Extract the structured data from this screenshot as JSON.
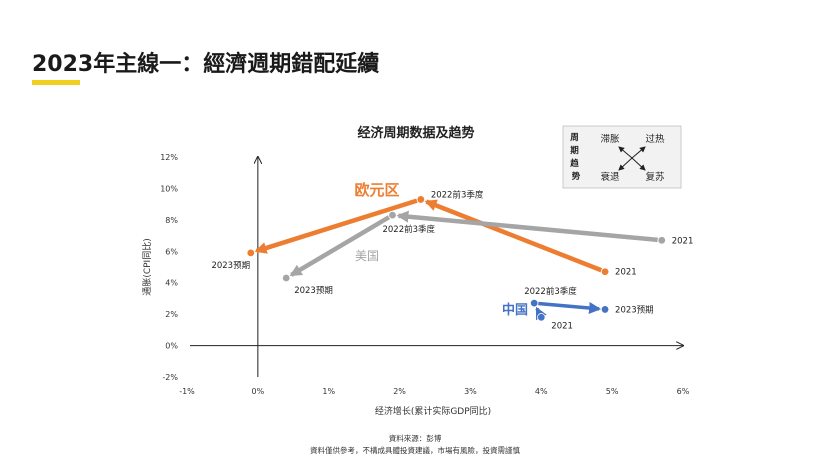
{
  "slide": {
    "title": "2023年主線一：經濟週期錯配延續",
    "accent_color": "#f2cf1e"
  },
  "chart_data": {
    "type": "scatter",
    "title": "经济周期数据及趋势",
    "xlabel": "经济增长(累计实际GDP同比)",
    "ylabel": "通胀(CPI同比)",
    "xlim": [
      -0.01,
      0.06
    ],
    "ylim": [
      -0.02,
      0.12
    ],
    "x_ticks": [
      "-1%",
      "0%",
      "1%",
      "2%",
      "3%",
      "4%",
      "5%",
      "6%"
    ],
    "y_ticks": [
      "-2%",
      "0%",
      "2%",
      "4%",
      "6%",
      "8%",
      "10%",
      "12%"
    ],
    "grid": false,
    "series": [
      {
        "name": "欧元区",
        "color": "#ed7d31",
        "points": [
          {
            "label": "2021",
            "x": 0.049,
            "y": 0.047
          },
          {
            "label": "2022前3季度",
            "x": 0.023,
            "y": 0.093
          },
          {
            "label": "2023预期",
            "x": -0.001,
            "y": 0.059
          }
        ]
      },
      {
        "name": "美国",
        "color": "#a5a5a5",
        "points": [
          {
            "label": "2021",
            "x": 0.057,
            "y": 0.067
          },
          {
            "label": "2022前3季度",
            "x": 0.019,
            "y": 0.083
          },
          {
            "label": "2023预期",
            "x": 0.004,
            "y": 0.043
          }
        ]
      },
      {
        "name": "中国",
        "color": "#4472c4",
        "points": [
          {
            "label": "2021",
            "x": 0.04,
            "y": 0.018
          },
          {
            "label": "2022前3季度",
            "x": 0.039,
            "y": 0.027
          },
          {
            "label": "2023预期",
            "x": 0.049,
            "y": 0.023
          }
        ]
      }
    ],
    "legend_box": {
      "side_label": "周期趋势",
      "quadrants": [
        "滞胀",
        "过热",
        "衰退",
        "复苏"
      ]
    }
  },
  "footer": {
    "source": "資料來源：彭博",
    "disclaimer": "資料僅供參考，不構成具體投資建議，市場有風險，投資需謹慎"
  }
}
